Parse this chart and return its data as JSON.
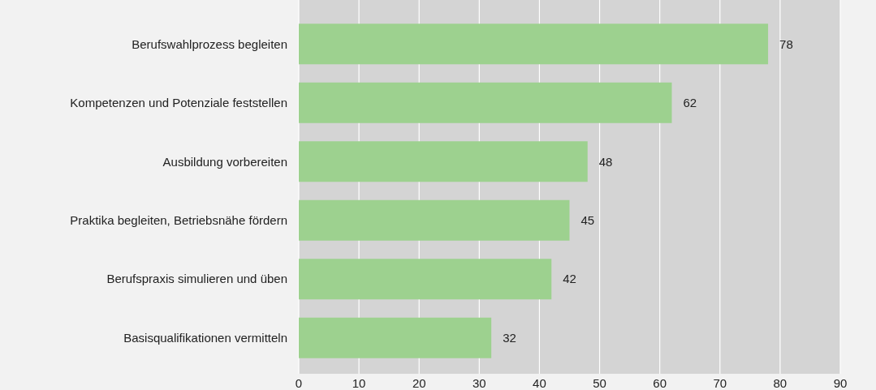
{
  "chart_data": {
    "type": "bar",
    "orientation": "horizontal",
    "categories": [
      "Berufswahlprozess begleiten",
      "Kompetenzen und Potenziale feststellen",
      "Ausbildung vorbereiten",
      "Praktika begleiten, Betriebsnähe fördern",
      "Berufspraxis simulieren und üben",
      "Basisqualifikationen vermitteln"
    ],
    "values": [
      78,
      62,
      48,
      45,
      42,
      32
    ],
    "color": "#9dd18f",
    "xlim": [
      0,
      90
    ],
    "xticks": [
      0,
      10,
      20,
      30,
      40,
      50,
      60,
      70,
      80,
      90
    ],
    "grid": "x",
    "data_labels": true
  }
}
